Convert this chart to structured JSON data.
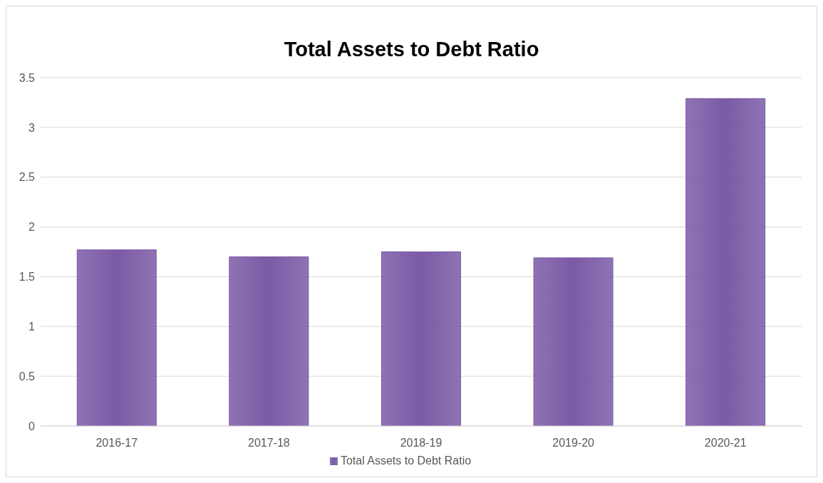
{
  "chart_data": {
    "type": "bar",
    "title": "Total Assets to Debt Ratio",
    "categories": [
      "2016-17",
      "2017-18",
      "2018-19",
      "2019-20",
      "2020-21"
    ],
    "series": [
      {
        "name": "Total Assets to Debt Ratio",
        "color": "#7b5aa6",
        "values": [
          1.77,
          1.7,
          1.75,
          1.69,
          3.29
        ]
      }
    ],
    "ylim": [
      0,
      3.5
    ],
    "yticks": [
      0,
      0.5,
      1,
      1.5,
      2,
      2.5,
      3,
      3.5
    ],
    "grid": "y",
    "legend": "bottom"
  }
}
